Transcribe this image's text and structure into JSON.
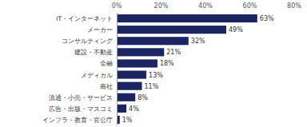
{
  "chart_data": {
    "type": "bar",
    "orientation": "horizontal",
    "categories": [
      "IT・インターネット",
      "メーカー",
      "コンサルティング",
      "建設・不動産",
      "金融",
      "メディカル",
      "商社",
      "流通・小売・サービス",
      "広告・出版・マスコミ",
      "インフラ・教育・官公庁"
    ],
    "values": [
      63,
      49,
      32,
      21,
      18,
      13,
      11,
      8,
      4,
      1
    ],
    "value_labels": [
      "63%",
      "49%",
      "32%",
      "21%",
      "18%",
      "13%",
      "11%",
      "8%",
      "4%",
      "1%"
    ],
    "color": "#1c2461",
    "xlim": [
      0,
      80
    ],
    "xticks": [
      {
        "value": 0,
        "label": "0%"
      },
      {
        "value": 20,
        "label": "20%"
      },
      {
        "value": 40,
        "label": "40%"
      },
      {
        "value": 60,
        "label": "60%"
      },
      {
        "value": 80,
        "label": "80%"
      }
    ],
    "grid": false,
    "data_labels": true
  }
}
